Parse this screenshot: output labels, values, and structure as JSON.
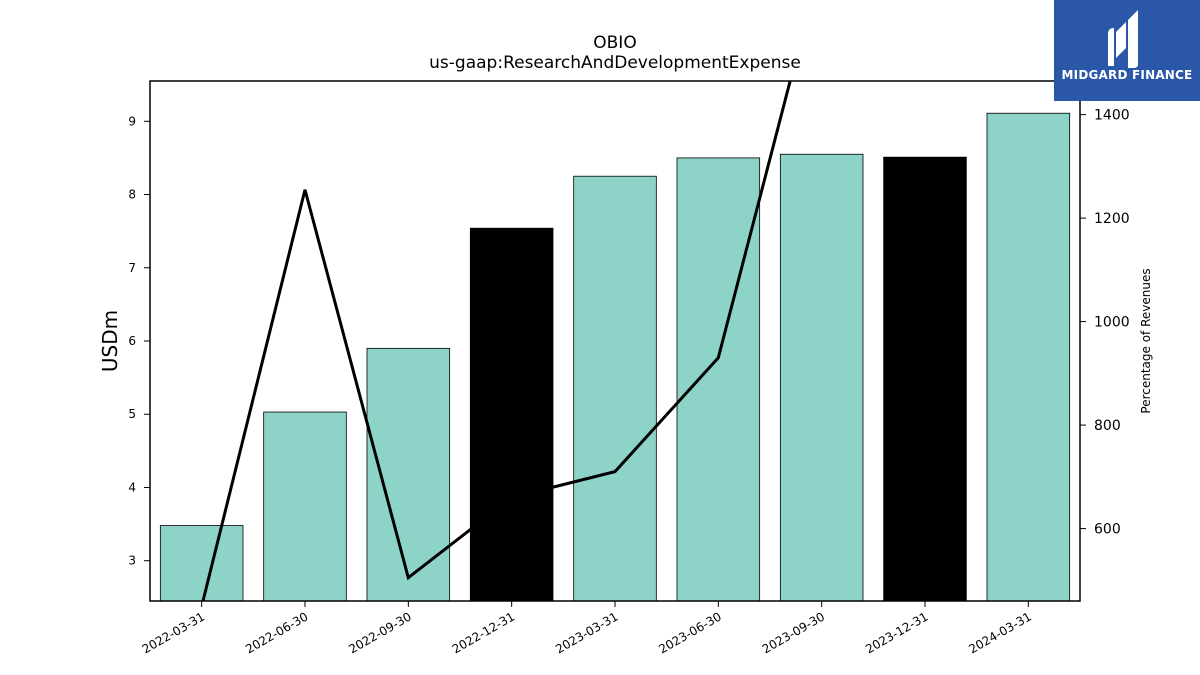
{
  "chart_data": {
    "type": "bar",
    "title": "OBIO",
    "subtitle": "us-gaap:ResearchAndDevelopmentExpense",
    "ylabel": "USDm",
    "y2label": "Percentage of Revenues",
    "categories": [
      "2022-03-31",
      "2022-06-30",
      "2022-09-30",
      "2022-12-31",
      "2023-03-31",
      "2023-06-30",
      "2023-09-30",
      "2023-12-31",
      "2024-03-31"
    ],
    "series": [
      {
        "values": [
          3.48,
          5.03,
          5.9,
          7.54,
          8.25,
          8.5,
          8.55,
          8.51,
          9.11
        ],
        "colors": [
          "#8dd3c7",
          "#8dd3c7",
          "#8dd3c7",
          "#000000",
          "#8dd3c7",
          "#8dd3c7",
          "#8dd3c7",
          "#000000",
          "#8dd3c7"
        ]
      },
      {
        "type": "line",
        "axis": "right",
        "color": "#000000",
        "values": [
          450,
          1255,
          505,
          660,
          710,
          930,
          1700,
          null,
          1500
        ]
      }
    ],
    "ylim": [
      2.45,
      9.55
    ],
    "y2lim": [
      460,
      1465
    ],
    "yticks": [
      3,
      4,
      5,
      6,
      7,
      8,
      9
    ],
    "y2ticks": [
      600,
      800,
      1000,
      1200,
      1400
    ],
    "grid": false
  },
  "logo": {
    "text": "MIDGARD FINANCE"
  }
}
